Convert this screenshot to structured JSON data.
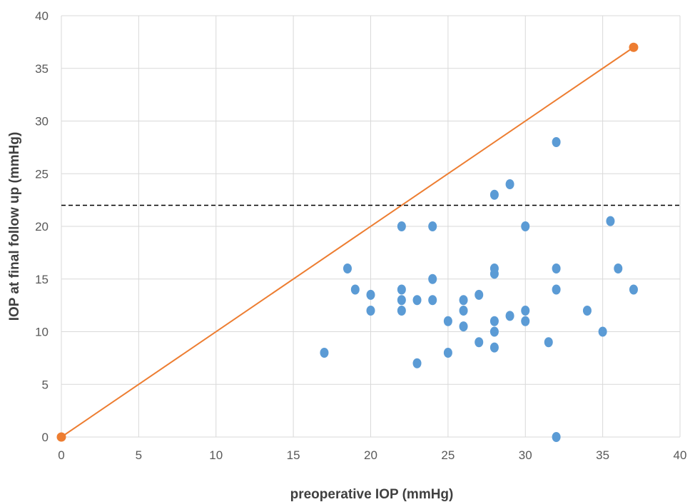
{
  "chart_data": {
    "type": "scatter",
    "xlabel": "preoperative IOP (mmHg)",
    "ylabel": "IOP at final follow up (mmHg)",
    "xlim": [
      0,
      40
    ],
    "ylim": [
      0,
      40
    ],
    "x_ticks": [
      0,
      5,
      10,
      15,
      20,
      25,
      30,
      35,
      40
    ],
    "y_ticks": [
      0,
      5,
      10,
      15,
      20,
      25,
      30,
      35,
      40
    ],
    "grid": true,
    "legend": "none",
    "series": [
      {
        "type": "scatter",
        "color": "#5B9BD5",
        "points": [
          [
            17,
            8
          ],
          [
            18.5,
            16
          ],
          [
            19,
            14
          ],
          [
            20,
            13.5
          ],
          [
            20,
            12
          ],
          [
            22,
            20
          ],
          [
            22,
            14
          ],
          [
            22,
            13
          ],
          [
            22,
            12
          ],
          [
            23,
            13
          ],
          [
            23,
            7
          ],
          [
            24,
            20
          ],
          [
            24,
            15
          ],
          [
            24,
            13
          ],
          [
            25,
            11
          ],
          [
            25,
            8
          ],
          [
            26,
            13
          ],
          [
            26,
            12
          ],
          [
            26,
            10.5
          ],
          [
            27,
            13.5
          ],
          [
            27,
            9
          ],
          [
            28,
            23
          ],
          [
            28,
            16
          ],
          [
            28,
            15.5
          ],
          [
            28,
            11
          ],
          [
            28,
            10
          ],
          [
            28,
            8.5
          ],
          [
            29,
            24
          ],
          [
            29,
            11.5
          ],
          [
            30,
            20
          ],
          [
            30,
            12
          ],
          [
            30,
            11
          ],
          [
            31.5,
            9
          ],
          [
            32,
            28
          ],
          [
            32,
            16
          ],
          [
            32,
            14
          ],
          [
            32,
            0
          ],
          [
            34,
            12
          ],
          [
            35,
            10
          ],
          [
            35.5,
            20.5
          ],
          [
            36,
            16
          ],
          [
            37,
            14
          ]
        ]
      },
      {
        "type": "line",
        "color": "#ED7D31",
        "points": [
          [
            0,
            0
          ],
          [
            37,
            37
          ]
        ],
        "markers": true
      },
      {
        "type": "hline",
        "color": "#000000",
        "dash": true,
        "y": 22
      }
    ]
  }
}
